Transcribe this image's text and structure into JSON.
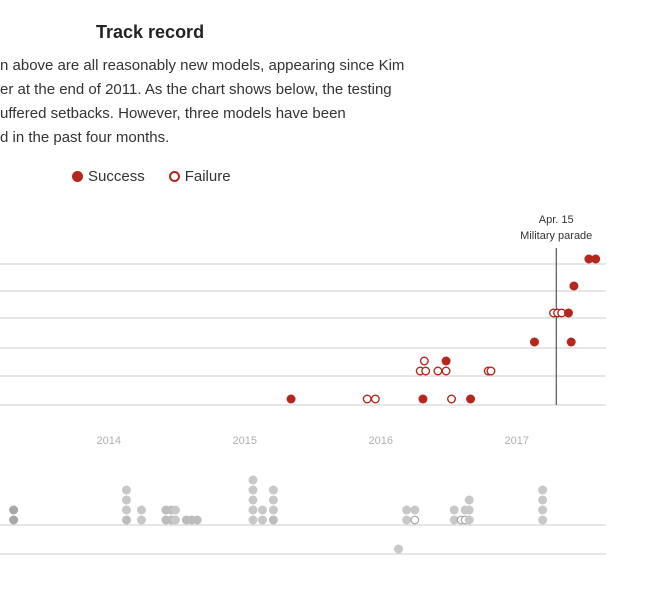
{
  "header": {
    "title": "Track record",
    "paragraph": [
      "n above are all reasonably new models, appearing since Kim",
      "er at the end of 2011. As the chart shows below, the testing",
      "uffered setbacks. However, three models have been",
      "d in the past four months."
    ]
  },
  "legend": {
    "success_label": "Success",
    "failure_label": "Failure"
  },
  "colors": {
    "success": "#b5271c",
    "gray": "#c8c8c8",
    "gridline": "#cccccc",
    "axis_label": "#b0b0b0"
  },
  "annotation": {
    "date": "Apr. 15",
    "label": "Military parade",
    "x": 2017.29
  },
  "chart_data": [
    {
      "type": "scatter",
      "title": "",
      "x_axis": {
        "ticks": [
          "2014",
          "2015",
          "2016",
          "2017"
        ]
      },
      "xlim": [
        2013.2,
        2017.65
      ],
      "rows": 6,
      "legend": "top-left",
      "grid": true,
      "points": [
        {
          "x": 2015.34,
          "row": 0,
          "stack": 0,
          "result": "success"
        },
        {
          "x": 2015.9,
          "row": 0,
          "stack": 0,
          "result": "failure"
        },
        {
          "x": 2015.96,
          "row": 0,
          "stack": 0,
          "result": "failure"
        },
        {
          "x": 2016.31,
          "row": 0,
          "stack": 0,
          "result": "success"
        },
        {
          "x": 2016.52,
          "row": 0,
          "stack": 0,
          "result": "failure"
        },
        {
          "x": 2016.66,
          "row": 0,
          "stack": 0,
          "result": "success"
        },
        {
          "x": 2016.79,
          "row": 1,
          "stack": 0,
          "result": "failure"
        },
        {
          "x": 2016.81,
          "row": 1,
          "stack": 0,
          "result": "failure"
        },
        {
          "x": 2016.29,
          "row": 1,
          "stack": 0,
          "result": "failure"
        },
        {
          "x": 2016.33,
          "row": 1,
          "stack": 0,
          "result": "failure"
        },
        {
          "x": 2016.42,
          "row": 1,
          "stack": 0,
          "result": "failure"
        },
        {
          "x": 2016.48,
          "row": 1,
          "stack": 0,
          "result": "failure"
        },
        {
          "x": 2016.32,
          "row": 1,
          "stack": 1,
          "result": "failure"
        },
        {
          "x": 2016.48,
          "row": 1,
          "stack": 1,
          "result": "success"
        },
        {
          "x": 2017.13,
          "row": 2,
          "stack": 0,
          "result": "success"
        },
        {
          "x": 2017.4,
          "row": 2,
          "stack": 0,
          "result": "success"
        },
        {
          "x": 2017.27,
          "row": 3,
          "stack": 0,
          "result": "failure"
        },
        {
          "x": 2017.3,
          "row": 3,
          "stack": 0,
          "result": "failure"
        },
        {
          "x": 2017.33,
          "row": 3,
          "stack": 0,
          "result": "failure"
        },
        {
          "x": 2017.38,
          "row": 3,
          "stack": 0,
          "result": "success"
        },
        {
          "x": 2017.42,
          "row": 4,
          "stack": 0,
          "result": "success"
        },
        {
          "x": 2017.53,
          "row": 5,
          "stack": 0,
          "result": "success"
        },
        {
          "x": 2017.58,
          "row": 5,
          "stack": 0,
          "result": "success"
        }
      ]
    },
    {
      "type": "scatter",
      "title": "",
      "xlim": [
        2013.2,
        2017.65
      ],
      "rows": 2,
      "grid": true,
      "points": [
        {
          "x": 2013.3,
          "row": 0,
          "stack": 0,
          "result": "dark"
        },
        {
          "x": 2013.3,
          "row": 0,
          "stack": 1,
          "result": "dark"
        },
        {
          "x": 2014.13,
          "row": 0,
          "stack": 0,
          "result": "mid"
        },
        {
          "x": 2014.13,
          "row": 0,
          "stack": 1,
          "result": "gray"
        },
        {
          "x": 2014.13,
          "row": 0,
          "stack": 2,
          "result": "gray"
        },
        {
          "x": 2014.13,
          "row": 0,
          "stack": 3,
          "result": "gray"
        },
        {
          "x": 2014.24,
          "row": 0,
          "stack": 0,
          "result": "gray"
        },
        {
          "x": 2014.24,
          "row": 0,
          "stack": 1,
          "result": "gray"
        },
        {
          "x": 2014.42,
          "row": 0,
          "stack": 0,
          "result": "mid"
        },
        {
          "x": 2014.42,
          "row": 0,
          "stack": 1,
          "result": "mid"
        },
        {
          "x": 2014.46,
          "row": 0,
          "stack": 0,
          "result": "mid"
        },
        {
          "x": 2014.46,
          "row": 0,
          "stack": 1,
          "result": "mid"
        },
        {
          "x": 2014.49,
          "row": 0,
          "stack": 0,
          "result": "gray"
        },
        {
          "x": 2014.49,
          "row": 0,
          "stack": 1,
          "result": "gray"
        },
        {
          "x": 2014.57,
          "row": 0,
          "stack": 0,
          "result": "mid"
        },
        {
          "x": 2014.61,
          "row": 0,
          "stack": 0,
          "result": "mid"
        },
        {
          "x": 2014.65,
          "row": 0,
          "stack": 0,
          "result": "mid"
        },
        {
          "x": 2015.06,
          "row": 0,
          "stack": 0,
          "result": "gray"
        },
        {
          "x": 2015.06,
          "row": 0,
          "stack": 1,
          "result": "gray"
        },
        {
          "x": 2015.06,
          "row": 0,
          "stack": 2,
          "result": "gray"
        },
        {
          "x": 2015.06,
          "row": 0,
          "stack": 3,
          "result": "gray"
        },
        {
          "x": 2015.06,
          "row": 0,
          "stack": 4,
          "result": "gray"
        },
        {
          "x": 2015.13,
          "row": 0,
          "stack": 0,
          "result": "gray"
        },
        {
          "x": 2015.13,
          "row": 0,
          "stack": 1,
          "result": "gray"
        },
        {
          "x": 2015.21,
          "row": 0,
          "stack": 0,
          "result": "mid"
        },
        {
          "x": 2015.21,
          "row": 0,
          "stack": 1,
          "result": "gray"
        },
        {
          "x": 2015.21,
          "row": 0,
          "stack": 2,
          "result": "gray"
        },
        {
          "x": 2015.21,
          "row": 0,
          "stack": 3,
          "result": "gray"
        },
        {
          "x": 2016.19,
          "row": 0,
          "stack": 0,
          "result": "gray"
        },
        {
          "x": 2016.19,
          "row": 0,
          "stack": 1,
          "result": "gray"
        },
        {
          "x": 2016.25,
          "row": 0,
          "stack": 0,
          "result": "hollow"
        },
        {
          "x": 2016.25,
          "row": 0,
          "stack": 1,
          "result": "gray"
        },
        {
          "x": 2016.54,
          "row": 0,
          "stack": 0,
          "result": "gray"
        },
        {
          "x": 2016.54,
          "row": 0,
          "stack": 1,
          "result": "gray"
        },
        {
          "x": 2016.59,
          "row": 0,
          "stack": 0,
          "result": "hollow"
        },
        {
          "x": 2016.62,
          "row": 0,
          "stack": 0,
          "result": "hollow"
        },
        {
          "x": 2016.62,
          "row": 0,
          "stack": 1,
          "result": "gray"
        },
        {
          "x": 2016.65,
          "row": 0,
          "stack": 0,
          "result": "gray"
        },
        {
          "x": 2016.65,
          "row": 0,
          "stack": 1,
          "result": "gray"
        },
        {
          "x": 2016.65,
          "row": 0,
          "stack": 2,
          "result": "gray"
        },
        {
          "x": 2017.19,
          "row": 0,
          "stack": 0,
          "result": "gray"
        },
        {
          "x": 2017.19,
          "row": 0,
          "stack": 1,
          "result": "gray"
        },
        {
          "x": 2017.19,
          "row": 0,
          "stack": 2,
          "result": "gray"
        },
        {
          "x": 2017.19,
          "row": 0,
          "stack": 3,
          "result": "gray"
        },
        {
          "x": 2016.13,
          "row": -1,
          "stack": 0,
          "result": "gray"
        }
      ]
    }
  ]
}
